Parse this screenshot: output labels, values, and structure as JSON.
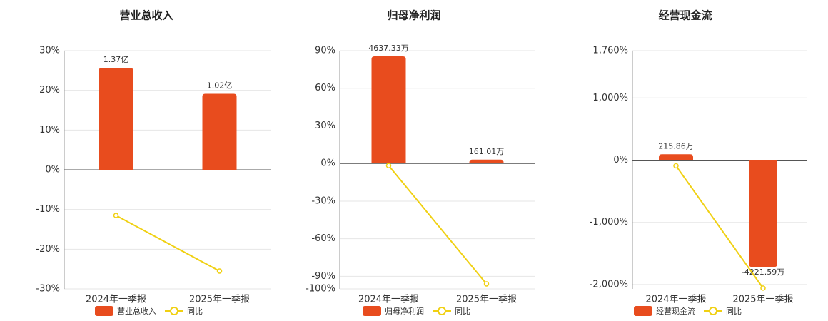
{
  "chart_data": [
    {
      "type": "bar",
      "title": "营业总收入",
      "categories": [
        "2024年一季报",
        "2025年一季报"
      ],
      "series": [
        {
          "name": "营业总收入",
          "color": "#e84c1e",
          "values": [
            1.37,
            1.02
          ],
          "value_labels": [
            "1.37亿",
            "1.02亿"
          ],
          "axis": "y2"
        },
        {
          "name": "同比",
          "color": "#f0d012",
          "type": "line",
          "values": [
            -11.5,
            -25.5
          ]
        }
      ],
      "ylim": [
        -30,
        30
      ],
      "yticks": [
        {
          "value": 30,
          "label": "30%"
        },
        {
          "value": 20,
          "label": "20%"
        },
        {
          "value": 10,
          "label": "10%"
        },
        {
          "value": 0,
          "label": "0%"
        },
        {
          "value": -10,
          "label": "-10%"
        },
        {
          "value": -20,
          "label": "-20%"
        },
        {
          "value": -30,
          "label": "-30%"
        }
      ],
      "y2lim": [
        -1.6,
        1.6
      ],
      "grid": true
    },
    {
      "type": "bar",
      "title": "归母净利润",
      "categories": [
        "2024年一季报",
        "2025年一季报"
      ],
      "series": [
        {
          "name": "归母净利润",
          "color": "#e84c1e",
          "values": [
            4637.33,
            161.01
          ],
          "value_labels": [
            "4637.33万",
            "161.01万"
          ],
          "axis": "y2"
        },
        {
          "name": "同比",
          "color": "#f0d012",
          "type": "line",
          "values": [
            -1.7,
            -96
          ]
        }
      ],
      "ylim": [
        -100,
        90
      ],
      "yticks": [
        {
          "value": 90,
          "label": "90%"
        },
        {
          "value": 60,
          "label": "60%"
        },
        {
          "value": 30,
          "label": "30%"
        },
        {
          "value": 0,
          "label": "0%"
        },
        {
          "value": -30,
          "label": "-30%"
        },
        {
          "value": -60,
          "label": "-60%"
        },
        {
          "value": -90,
          "label": "-90%"
        },
        {
          "value": -100,
          "label": "-100%"
        }
      ],
      "y2lim": [
        -5440,
        4884
      ],
      "grid": true
    },
    {
      "type": "bar",
      "title": "经营现金流",
      "categories": [
        "2024年一季报",
        "2025年一季报"
      ],
      "series": [
        {
          "name": "经营现金流",
          "color": "#e84c1e",
          "values": [
            215.86,
            -4221.59
          ],
          "value_labels": [
            "215.86万",
            "-4221.59万"
          ],
          "axis": "y2"
        },
        {
          "name": "同比",
          "color": "#f0d012",
          "type": "line",
          "values": [
            -91,
            -2057
          ]
        }
      ],
      "ylim": [
        -2070,
        1760
      ],
      "yticks": [
        {
          "value": 1760,
          "label": "1,760%"
        },
        {
          "value": 1000,
          "label": "1,000%"
        },
        {
          "value": 0,
          "label": "0%"
        },
        {
          "value": -1000,
          "label": "-1,000%"
        },
        {
          "value": -2000,
          "label": "-2,000%"
        }
      ],
      "y2lim": [
        -5090,
        4300
      ],
      "grid": true
    }
  ]
}
